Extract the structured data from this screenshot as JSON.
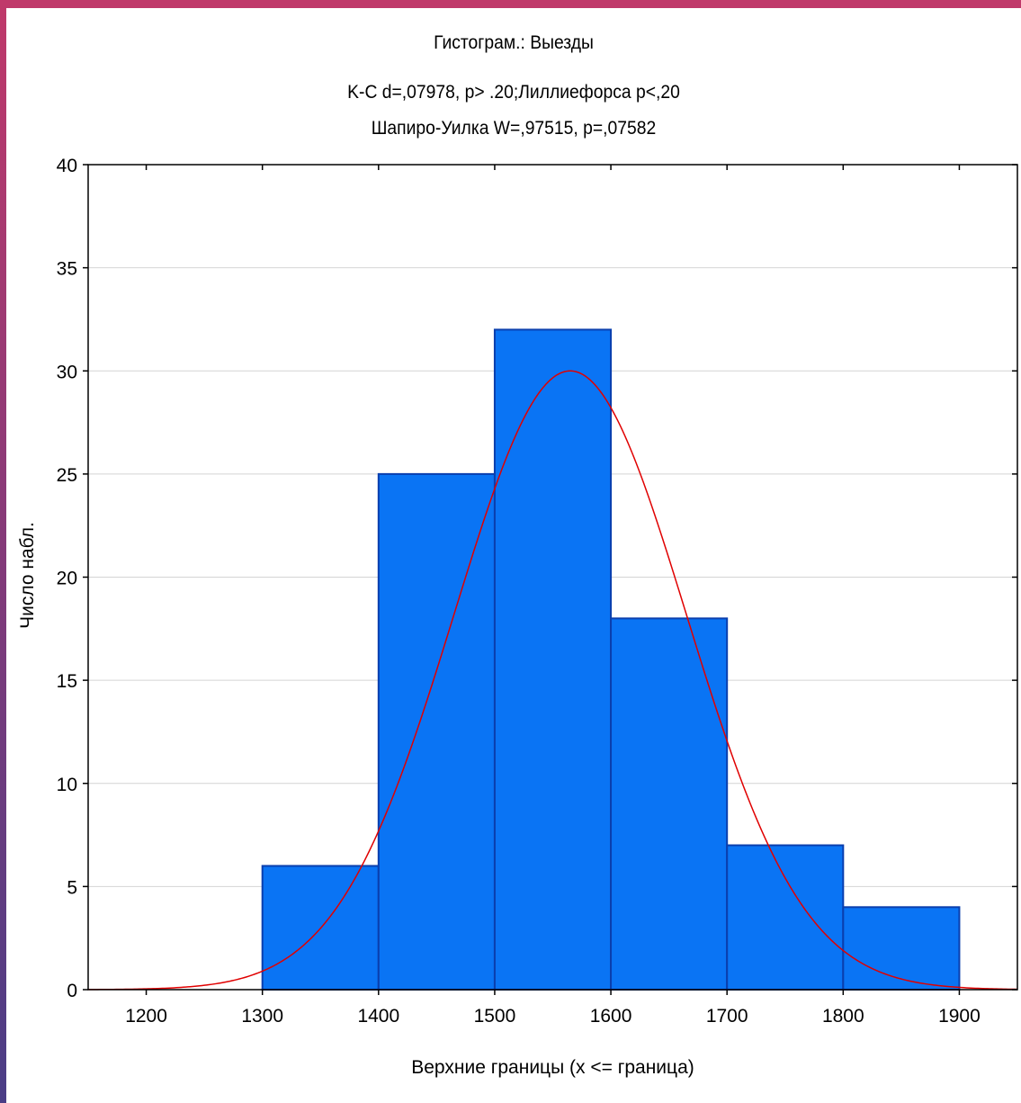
{
  "chart_data": {
    "type": "bar",
    "title": "Гистограм.: Выезды",
    "subtitle_lines": [
      "K-C d=,07978, p> .20;Лиллиефорса p<,20",
      "Шапиро-Уилка W=,97515, p=,07582"
    ],
    "xlabel": "Верхние границы (x <= граница)",
    "ylabel": "Число набл.",
    "xlim": [
      1150,
      1950
    ],
    "ylim": [
      0,
      40
    ],
    "x_ticks": [
      1200,
      1300,
      1400,
      1500,
      1600,
      1700,
      1800,
      1900
    ],
    "x_tick_labels": [
      "1200",
      "1300",
      "1400",
      "1500",
      "1600",
      "1700",
      "1800",
      "1900"
    ],
    "y_ticks": [
      0,
      5,
      10,
      15,
      20,
      25,
      30,
      35,
      40
    ],
    "y_tick_labels": [
      "0",
      "5",
      "10",
      "15",
      "20",
      "25",
      "30",
      "35",
      "40"
    ],
    "bins": [
      {
        "from": 1300,
        "to": 1400,
        "count": 6
      },
      {
        "from": 1400,
        "to": 1500,
        "count": 25
      },
      {
        "from": 1500,
        "to": 1600,
        "count": 32
      },
      {
        "from": 1600,
        "to": 1700,
        "count": 18
      },
      {
        "from": 1700,
        "to": 1800,
        "count": 7
      },
      {
        "from": 1800,
        "to": 1900,
        "count": 4
      }
    ],
    "normal_curve": {
      "mean": 1565,
      "peak": 30,
      "sd": 100
    },
    "grid": true,
    "colors": {
      "bar_fill": "#0a74f4",
      "bar_edge": "#0a3fae",
      "curve": "#e00000",
      "grid": "#d4d4d4"
    }
  }
}
